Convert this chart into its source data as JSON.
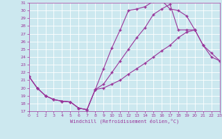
{
  "bg_color": "#cce8ef",
  "line_color": "#993399",
  "grid_color": "#ffffff",
  "xlabel": "Windchill (Refroidissement éolien,°C)",
  "xlim": [
    0,
    23
  ],
  "ylim": [
    17,
    31
  ],
  "xticks": [
    0,
    1,
    2,
    3,
    4,
    5,
    6,
    7,
    8,
    9,
    10,
    11,
    12,
    13,
    14,
    15,
    16,
    17,
    18,
    19,
    20,
    21,
    22,
    23
  ],
  "yticks": [
    17,
    18,
    19,
    20,
    21,
    22,
    23,
    24,
    25,
    26,
    27,
    28,
    29,
    30,
    31
  ],
  "curves": [
    {
      "x": [
        0,
        1,
        2,
        3,
        4,
        5,
        6,
        7,
        8,
        9,
        10,
        11,
        12,
        13,
        14,
        15,
        16,
        17,
        18,
        19,
        20
      ],
      "y": [
        21.5,
        20.0,
        19.0,
        18.5,
        18.3,
        18.2,
        17.4,
        17.2,
        19.8,
        22.5,
        25.2,
        27.5,
        30.0,
        30.2,
        30.5,
        31.2,
        31.3,
        30.2,
        30.0,
        29.3,
        27.5
      ]
    },
    {
      "x": [
        0,
        1,
        2,
        3,
        4,
        5,
        6,
        7,
        8,
        9,
        10,
        11,
        12,
        13,
        14,
        15,
        16,
        17,
        18,
        19,
        20,
        21,
        22,
        23
      ],
      "y": [
        21.5,
        20.0,
        19.0,
        18.5,
        18.3,
        18.2,
        17.4,
        17.2,
        19.8,
        20.5,
        22.0,
        23.5,
        25.0,
        26.5,
        27.8,
        29.5,
        30.2,
        30.8,
        27.5,
        27.5,
        27.5,
        25.5,
        24.5,
        23.5
      ]
    },
    {
      "x": [
        0,
        1,
        2,
        3,
        4,
        5,
        6,
        7,
        8,
        9,
        10,
        11,
        12,
        13,
        14,
        15,
        16,
        17,
        18,
        19,
        20,
        21,
        22,
        23
      ],
      "y": [
        21.5,
        20.0,
        19.0,
        18.5,
        18.3,
        18.2,
        17.4,
        17.2,
        19.8,
        20.0,
        20.5,
        21.0,
        21.8,
        22.5,
        23.2,
        24.0,
        24.8,
        25.5,
        26.5,
        27.2,
        27.5,
        25.5,
        24.0,
        23.5
      ]
    }
  ]
}
